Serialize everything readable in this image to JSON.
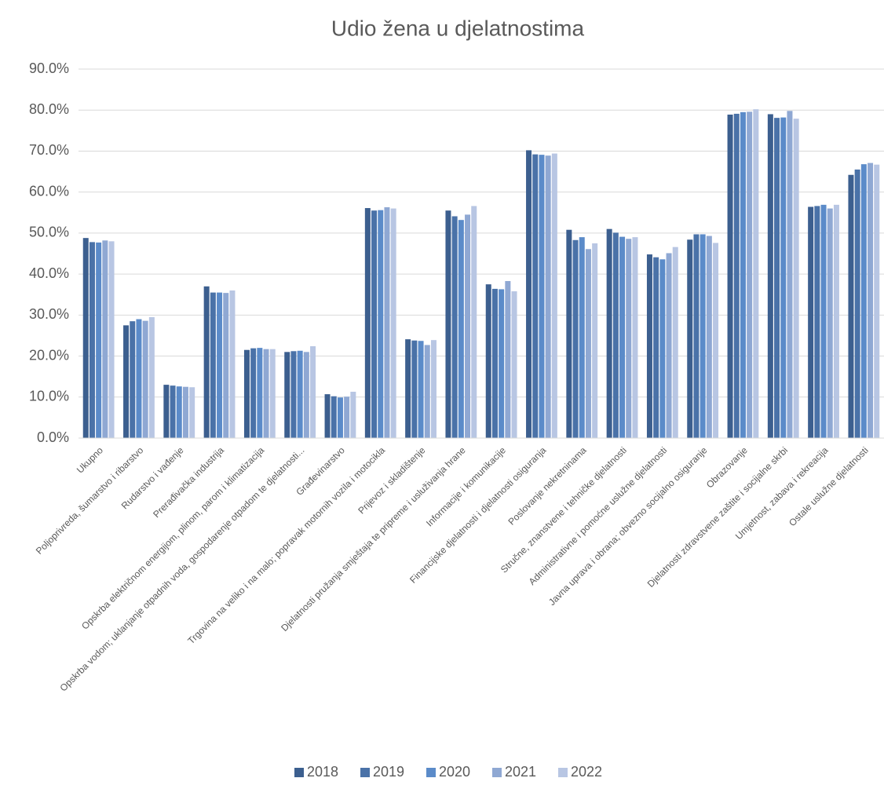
{
  "chart_data": {
    "type": "bar",
    "title": "Udio žena u djelatnostima",
    "categories": [
      "Ukupno",
      "Poljoprivreda, šumarstvo i ribarstvo",
      "Rudarstvo i vađenje",
      "Prerađivačka industrija",
      "Opskrba električnom energijom, plinom, parom i klimatizacija",
      "Opskrba vodom; uklanjanje otpadnih voda, gospodarenje otpadom te djelatnosti...",
      "Građevinarstvo",
      "Trgovina na veliko i na malo; popravak motornih vozila i motocikla",
      "Prijevoz i skladištenje",
      "Djelatnosti pružanja smještaja te pripreme i usluživanja hrane",
      "Informacije i komunikacije",
      "Financijske djelatnosti i djelatnosti osiguranja",
      "Poslovanje nekretninama",
      "Stručne, znanstvene i tehničke djelatnosti",
      "Administrativne i pomoćne uslužne djelatnosti",
      "Javna uprava i obrana; obvezno socijalno osiguranje",
      "Obrazovanje",
      "Djelatnosti zdravstvene zaštite i socijalne skrbi",
      "Umjetnost, zabava i rekreacija",
      "Ostale uslužne djelatnosti"
    ],
    "series": [
      {
        "name": "2018",
        "color": "#3c5f8f",
        "values": [
          48.8,
          27.5,
          13.0,
          37.0,
          21.5,
          21.0,
          10.7,
          56.1,
          24.1,
          55.5,
          37.5,
          70.2,
          50.8,
          51.0,
          44.8,
          48.4,
          78.9,
          79.0,
          56.4,
          64.2
        ]
      },
      {
        "name": "2019",
        "color": "#4a72a8",
        "values": [
          47.8,
          28.5,
          12.8,
          35.5,
          21.9,
          21.2,
          10.2,
          55.5,
          23.8,
          54.1,
          36.4,
          69.2,
          48.3,
          50.1,
          44.1,
          49.7,
          79.1,
          78.1,
          56.6,
          65.5
        ]
      },
      {
        "name": "2020",
        "color": "#5b8bc9",
        "values": [
          47.7,
          29.0,
          12.6,
          35.5,
          22.0,
          21.3,
          9.9,
          55.6,
          23.7,
          53.2,
          36.3,
          69.1,
          49.0,
          49.1,
          43.6,
          49.7,
          79.5,
          78.2,
          56.9,
          66.8
        ]
      },
      {
        "name": "2021",
        "color": "#8fa8d3",
        "values": [
          48.2,
          28.6,
          12.5,
          35.4,
          21.7,
          21.0,
          10.1,
          56.3,
          22.7,
          54.5,
          38.3,
          68.9,
          46.1,
          48.6,
          45.1,
          49.3,
          79.6,
          79.8,
          56.0,
          67.1
        ]
      },
      {
        "name": "2022",
        "color": "#b8c6e3",
        "values": [
          48.0,
          29.5,
          12.4,
          36.0,
          21.7,
          22.4,
          11.3,
          56.0,
          23.9,
          56.6,
          35.8,
          69.4,
          47.5,
          49.0,
          46.6,
          47.6,
          80.2,
          77.9,
          56.9,
          66.7
        ]
      }
    ],
    "ylim": [
      0,
      90
    ],
    "yticks": [
      {
        "value": 0,
        "label": "0.0%"
      },
      {
        "value": 10,
        "label": "10.0%"
      },
      {
        "value": 20,
        "label": "20.0%"
      },
      {
        "value": 30,
        "label": "30.0%"
      },
      {
        "value": 40,
        "label": "40.0%"
      },
      {
        "value": 50,
        "label": "50.0%"
      },
      {
        "value": 60,
        "label": "60.0%"
      },
      {
        "value": 70,
        "label": "70.0%"
      },
      {
        "value": 80,
        "label": "80.0%"
      },
      {
        "value": 90,
        "label": "90.0%"
      }
    ],
    "grid": true,
    "legend": "bottom"
  }
}
